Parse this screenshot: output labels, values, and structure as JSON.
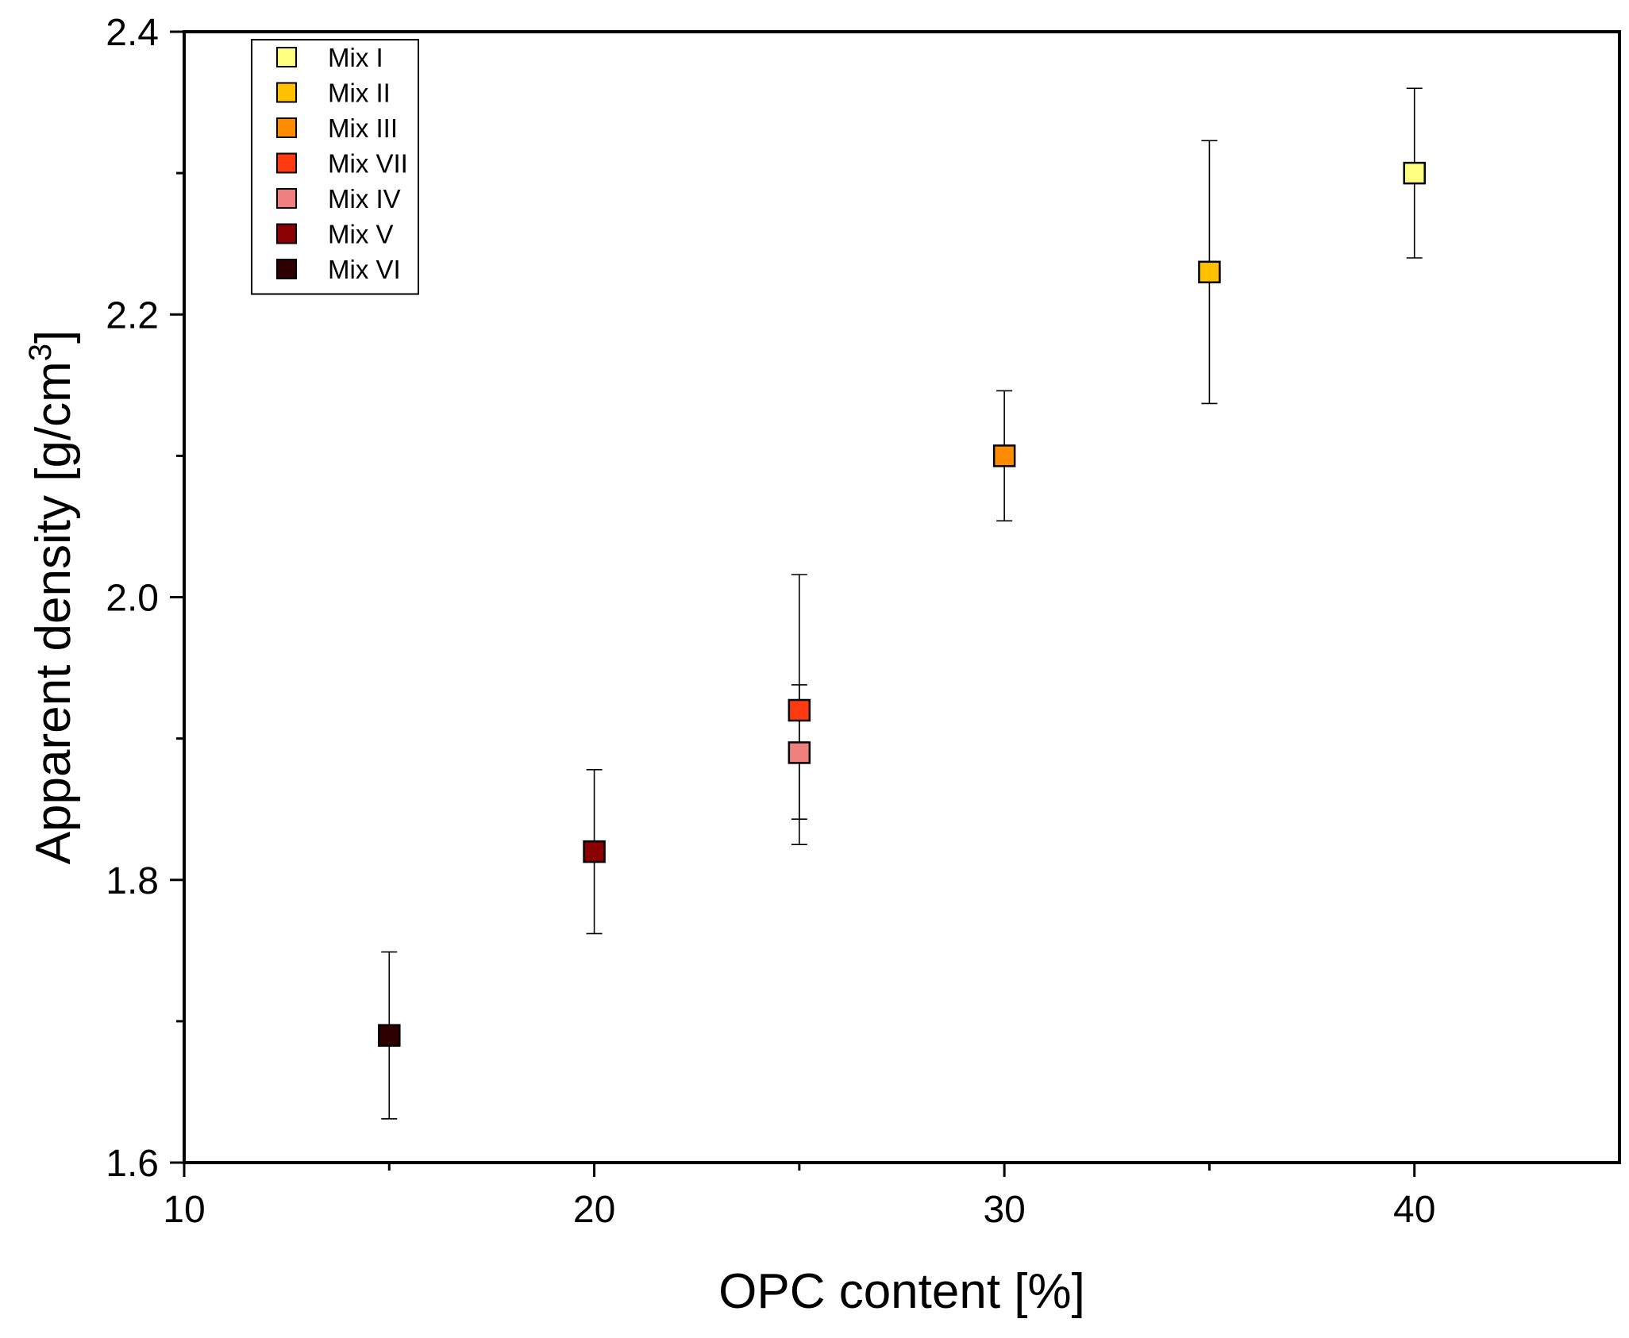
{
  "chart_data": {
    "type": "scatter",
    "xlabel": "OPC content [%]",
    "ylabel_main": "Apparent density [g/cm",
    "ylabel_sup": "3",
    "ylabel_close": "]",
    "xlim": [
      10,
      45
    ],
    "ylim": [
      1.6,
      2.4
    ],
    "x_ticks": [
      10,
      20,
      30,
      40
    ],
    "x_tick_labels": [
      "10",
      "20",
      "30",
      "40"
    ],
    "x_minor_ticks": [
      15,
      25,
      35
    ],
    "y_ticks": [
      1.6,
      1.8,
      2.0,
      2.2,
      2.4
    ],
    "y_tick_labels": [
      "1.6",
      "1.8",
      "2.0",
      "2.2",
      "2.4"
    ],
    "y_minor_ticks": [
      1.7,
      1.9,
      2.1,
      2.3
    ],
    "legend_position": "top-left",
    "series": [
      {
        "name": "Mix I",
        "x": 40,
        "y": 2.3,
        "err_low": 2.24,
        "err_high": 2.36,
        "color": "#FFFF80"
      },
      {
        "name": "Mix II",
        "x": 35,
        "y": 2.23,
        "err_low": 2.137,
        "err_high": 2.323,
        "color": "#FFC000"
      },
      {
        "name": "Mix III",
        "x": 30,
        "y": 2.1,
        "err_low": 2.054,
        "err_high": 2.146,
        "color": "#FF8C00"
      },
      {
        "name": "Mix VII",
        "x": 25,
        "y": 1.92,
        "err_low": 1.843,
        "err_high": 2.016,
        "color": "#FF3A10"
      },
      {
        "name": "Mix IV",
        "x": 25,
        "y": 1.89,
        "err_low": 1.825,
        "err_high": 1.938,
        "color": "#F08080"
      },
      {
        "name": "Mix V",
        "x": 20,
        "y": 1.82,
        "err_low": 1.762,
        "err_high": 1.878,
        "color": "#8B0000"
      },
      {
        "name": "Mix VI",
        "x": 15,
        "y": 1.69,
        "err_low": 1.631,
        "err_high": 1.749,
        "color": "#2E0000"
      }
    ]
  }
}
